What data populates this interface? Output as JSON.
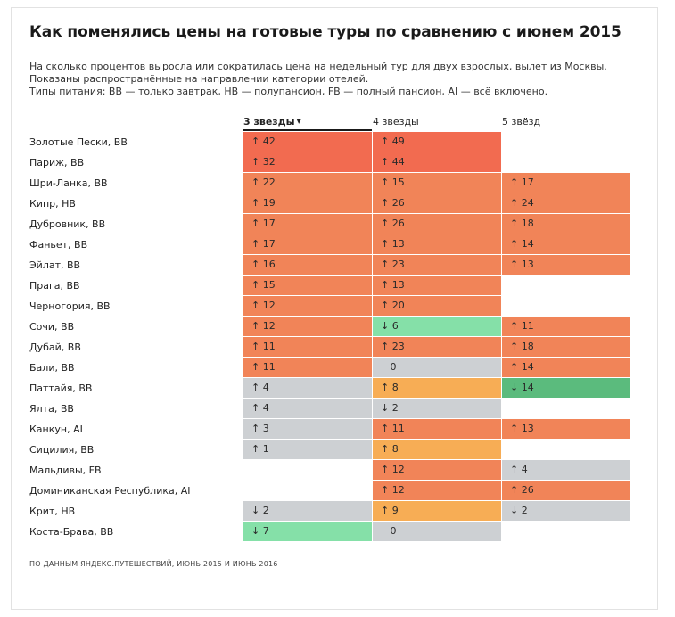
{
  "chart_data": {
    "type": "table",
    "title": "Как поменялись цены на готовые туры по сравнению с июнем 2015",
    "subtitle_lines": [
      "На сколько процентов выросла или сократилась цена на недельный тур для двух взрослых, вылет из Москвы.",
      "Показаны распространённые на направлении категории отелей.",
      "Типы питания: BB — только завтрак, HB — полупансион, FB — полный пансион, AI — всё включено."
    ],
    "columns": [
      "3 звезды",
      "4 звезды",
      "5 звёзд"
    ],
    "active_column": 0,
    "rows": [
      {
        "label": "Золотые Пески, BB",
        "values": [
          42,
          49,
          null
        ]
      },
      {
        "label": "Париж, BB",
        "values": [
          32,
          44,
          null
        ]
      },
      {
        "label": "Шри-Ланка, BB",
        "values": [
          22,
          15,
          17
        ]
      },
      {
        "label": "Кипр, HB",
        "values": [
          19,
          26,
          24
        ]
      },
      {
        "label": "Дубровник, BB",
        "values": [
          17,
          26,
          18
        ]
      },
      {
        "label": "Фаньет, BB",
        "values": [
          17,
          13,
          14
        ]
      },
      {
        "label": "Эйлат, BB",
        "values": [
          16,
          23,
          13
        ]
      },
      {
        "label": "Прага, BB",
        "values": [
          15,
          13,
          null
        ]
      },
      {
        "label": "Черногория, BB",
        "values": [
          12,
          20,
          null
        ]
      },
      {
        "label": "Сочи, BB",
        "values": [
          12,
          -6,
          11
        ]
      },
      {
        "label": "Дубай, BB",
        "values": [
          11,
          23,
          18
        ]
      },
      {
        "label": "Бали, BB",
        "values": [
          11,
          0,
          14
        ]
      },
      {
        "label": "Паттайя, BB",
        "values": [
          4,
          8,
          -14
        ]
      },
      {
        "label": "Ялта, BB",
        "values": [
          4,
          -2,
          null
        ]
      },
      {
        "label": "Канкун, AI",
        "values": [
          3,
          11,
          13
        ]
      },
      {
        "label": "Сицилия, BB",
        "values": [
          1,
          8,
          null
        ]
      },
      {
        "label": "Мальдивы, FB",
        "values": [
          null,
          12,
          4
        ]
      },
      {
        "label": "Доминиканская Республика, AI",
        "values": [
          null,
          12,
          26
        ]
      },
      {
        "label": "Крит, HB",
        "values": [
          -2,
          9,
          -2
        ]
      },
      {
        "label": "Коста-Брава, BB",
        "values": [
          -7,
          0,
          null
        ]
      }
    ],
    "colors": {
      "strong_up": "#f26b50",
      "up": "#f18458",
      "mild_up": "#f7ad55",
      "neutral": "#cdd0d3",
      "down_light": "#85e0a8",
      "down_strong": "#5bbb7d"
    },
    "source": "ПО ДАННЫМ ЯНДЕКС.ПУТЕШЕСТВИЙ, ИЮНЬ 2015 И ИЮНЬ 2016"
  }
}
